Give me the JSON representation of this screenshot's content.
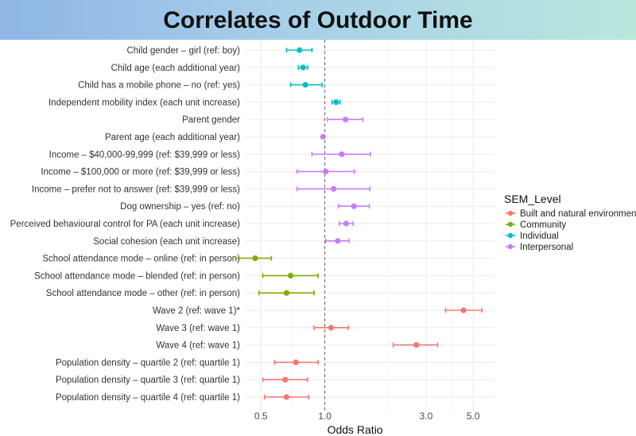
{
  "header": {
    "title": "Correlates of Outdoor Time"
  },
  "chart_data": {
    "type": "scatter",
    "subtype": "forest-plot",
    "title": "Correlates of Outdoor Time",
    "xlabel": "Odds Ratio",
    "x_scale": "log",
    "xlim": [
      0.42,
      6.3
    ],
    "x_ticks": [
      0.5,
      1.0,
      3.0,
      5.0
    ],
    "x_tick_labels": [
      "0.5",
      "1.0",
      "3.0",
      "5.0"
    ],
    "reference_line": 1.0,
    "grid": true,
    "legend": {
      "title": "SEM_Level",
      "position": "right",
      "entries": [
        {
          "name": "Built and natural environment",
          "color": "#f8766d"
        },
        {
          "name": "Community",
          "color": "#7cae00"
        },
        {
          "name": "Individual",
          "color": "#00bfc4"
        },
        {
          "name": "Interpersonal",
          "color": "#c77cff"
        }
      ]
    },
    "rows": [
      {
        "label": "Child gender – girl (ref: boy)",
        "level": "Individual",
        "or": 0.76,
        "lo": 0.66,
        "hi": 0.87
      },
      {
        "label": "Child age (each additional year)",
        "level": "Individual",
        "or": 0.79,
        "lo": 0.75,
        "hi": 0.83
      },
      {
        "label": "Child has a mobile phone – no (ref: yes)",
        "level": "Individual",
        "or": 0.81,
        "lo": 0.69,
        "hi": 0.97
      },
      {
        "label": "Independent mobility index (each unit increase)",
        "level": "Individual",
        "or": 1.13,
        "lo": 1.08,
        "hi": 1.18
      },
      {
        "label": "Parent gender",
        "level": "Interpersonal",
        "or": 1.25,
        "lo": 1.03,
        "hi": 1.51
      },
      {
        "label": "Parent age (each additional year)",
        "level": "Interpersonal",
        "or": 0.98,
        "lo": 0.97,
        "hi": 0.99
      },
      {
        "label": "Income – $40,000-99,999 (ref: $39,999 or less)",
        "level": "Interpersonal",
        "or": 1.2,
        "lo": 0.87,
        "hi": 1.64
      },
      {
        "label": "Income – $100,000 or more (ref: $39,999 or less)",
        "level": "Interpersonal",
        "or": 1.01,
        "lo": 0.74,
        "hi": 1.38
      },
      {
        "label": "Income – prefer not to answer (ref: $39,999 or less)",
        "level": "Interpersonal",
        "or": 1.1,
        "lo": 0.74,
        "hi": 1.63
      },
      {
        "label": "Dog ownership – yes (ref: no)",
        "level": "Interpersonal",
        "or": 1.37,
        "lo": 1.16,
        "hi": 1.62
      },
      {
        "label": "Perceived behavioural control for PA (each unit increase)",
        "level": "Interpersonal",
        "or": 1.26,
        "lo": 1.17,
        "hi": 1.36
      },
      {
        "label": "Social cohesion (each unit increase)",
        "level": "Interpersonal",
        "or": 1.15,
        "lo": 1.01,
        "hi": 1.3
      },
      {
        "label": "School attendance mode – online (ref: in person)",
        "level": "Community",
        "or": 0.47,
        "lo": 0.38,
        "hi": 0.56
      },
      {
        "label": "School attendance mode – blended (ref: in person)",
        "level": "Community",
        "or": 0.69,
        "lo": 0.51,
        "hi": 0.93
      },
      {
        "label": "School attendance mode – other (ref: in person)",
        "level": "Community",
        "or": 0.66,
        "lo": 0.49,
        "hi": 0.89
      },
      {
        "label": "Wave 2 (ref: wave 1)*",
        "level": "Built and natural environment",
        "or": 4.5,
        "lo": 3.7,
        "hi": 5.5
      },
      {
        "label": "Wave 3 (ref: wave 1)",
        "level": "Built and natural environment",
        "or": 1.07,
        "lo": 0.89,
        "hi": 1.29
      },
      {
        "label": "Wave 4 (ref: wave 1)",
        "level": "Built and natural environment",
        "or": 2.7,
        "lo": 2.1,
        "hi": 3.4
      },
      {
        "label": "Population density – quartile 2 (ref: quartile 1)",
        "level": "Built and natural environment",
        "or": 0.73,
        "lo": 0.58,
        "hi": 0.93
      },
      {
        "label": "Population density – quartile 3 (ref: quartile 1)",
        "level": "Built and natural environment",
        "or": 0.65,
        "lo": 0.51,
        "hi": 0.83
      },
      {
        "label": "Population density – quartile 4 (ref: quartile 1)",
        "level": "Built and natural environment",
        "or": 0.66,
        "lo": 0.52,
        "hi": 0.84
      }
    ]
  }
}
